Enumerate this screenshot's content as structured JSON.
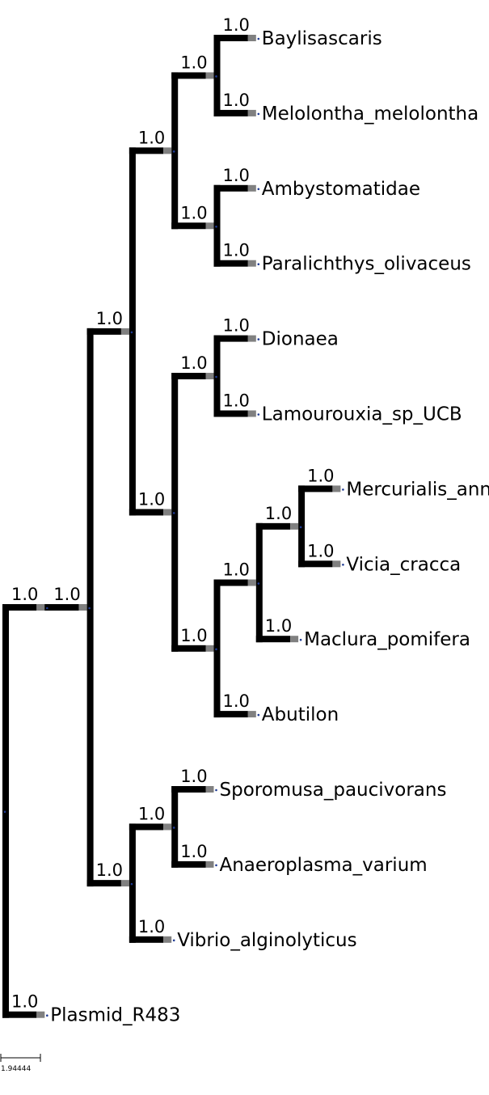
{
  "tree": {
    "colors": {
      "branch": "#000000",
      "branch_end": "#808080",
      "node_dot": "#1f3a93"
    },
    "root": {
      "id": "root",
      "children": [
        {
          "id": "n1",
          "support": "1.0",
          "children": [
            {
              "id": "n2",
              "support": "1.0",
              "children": [
                {
                  "id": "n3",
                  "support": "1.0",
                  "children": [
                    {
                      "id": "n4",
                      "support": "1.0",
                      "children": [
                        {
                          "id": "n5",
                          "support": "1.0",
                          "children": [
                            {
                              "id": "l1",
                              "name": "Baylisascaris",
                              "support": "1.0"
                            },
                            {
                              "id": "l2",
                              "name": "Melolontha_melolontha",
                              "support": "1.0"
                            }
                          ]
                        },
                        {
                          "id": "n6",
                          "support": "1.0",
                          "children": [
                            {
                              "id": "l3",
                              "name": "Ambystomatidae",
                              "support": "1.0"
                            },
                            {
                              "id": "l4",
                              "name": "Paralichthys_olivaceus",
                              "support": "1.0"
                            }
                          ]
                        }
                      ]
                    },
                    {
                      "id": "n7",
                      "support": "1.0",
                      "children": [
                        {
                          "id": "n8",
                          "support": "1.0",
                          "children": [
                            {
                              "id": "l5",
                              "name": "Dionaea",
                              "support": "1.0"
                            },
                            {
                              "id": "l6",
                              "name": "Lamourouxia_sp_UCB",
                              "support": "1.0"
                            }
                          ]
                        },
                        {
                          "id": "n9",
                          "support": "1.0",
                          "children": [
                            {
                              "id": "n10",
                              "support": "1.0",
                              "children": [
                                {
                                  "id": "n11",
                                  "support": "1.0",
                                  "children": [
                                    {
                                      "id": "l7",
                                      "name": "Mercurialis_annua",
                                      "support": "1.0"
                                    },
                                    {
                                      "id": "l8",
                                      "name": "Vicia_cracca",
                                      "support": "1.0"
                                    }
                                  ]
                                },
                                {
                                  "id": "l9",
                                  "name": "Maclura_pomifera",
                                  "support": "1.0"
                                }
                              ]
                            },
                            {
                              "id": "l10",
                              "name": "Abutilon",
                              "support": "1.0"
                            }
                          ]
                        }
                      ]
                    }
                  ]
                },
                {
                  "id": "n12",
                  "support": "1.0",
                  "children": [
                    {
                      "id": "n13",
                      "support": "1.0",
                      "children": [
                        {
                          "id": "l11",
                          "name": "Sporomusa_paucivorans",
                          "support": "1.0"
                        },
                        {
                          "id": "l12",
                          "name": "Anaeroplasma_varium",
                          "support": "1.0"
                        }
                      ]
                    },
                    {
                      "id": "l13",
                      "name": "Vibrio_alginolyticus",
                      "support": "1.0"
                    }
                  ]
                }
              ]
            }
          ]
        },
        {
          "id": "l14",
          "name": "Plasmid_R483",
          "support": "1.0"
        }
      ]
    }
  },
  "scale_bar": {
    "label": "1.94444"
  }
}
